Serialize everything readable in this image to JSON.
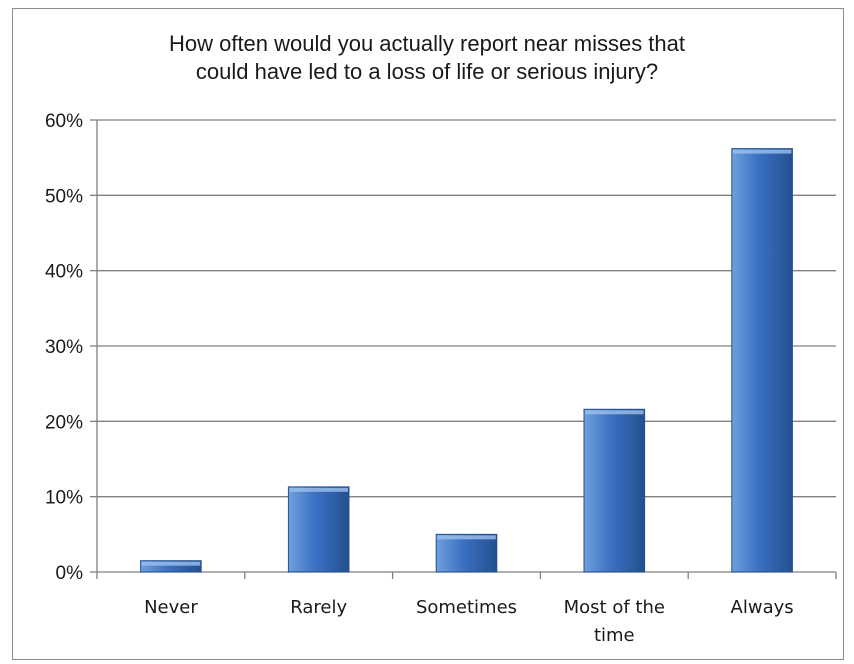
{
  "chart_data": {
    "type": "bar",
    "title_lines": [
      "How often would you actually report near misses that",
      "could have led to a loss of life or serious injury?"
    ],
    "categories": [
      [
        "Never"
      ],
      [
        "Rarely"
      ],
      [
        "Sometimes"
      ],
      [
        "Most of the",
        "time"
      ],
      [
        "Always"
      ]
    ],
    "values": [
      1.5,
      11.3,
      5.0,
      21.6,
      56.2
    ],
    "ylim": [
      0,
      60
    ],
    "yticks": [
      0,
      10,
      20,
      30,
      40,
      50,
      60
    ],
    "ytick_labels": [
      "0%",
      "10%",
      "20%",
      "30%",
      "40%",
      "50%",
      "60%"
    ],
    "grid": true,
    "legend": "none",
    "colors": {
      "bar_light": "#6f9fdc",
      "bar_mid": "#3a70c2",
      "bar_dark": "#24508f",
      "grid": "#808080",
      "axis": "#808080"
    }
  }
}
